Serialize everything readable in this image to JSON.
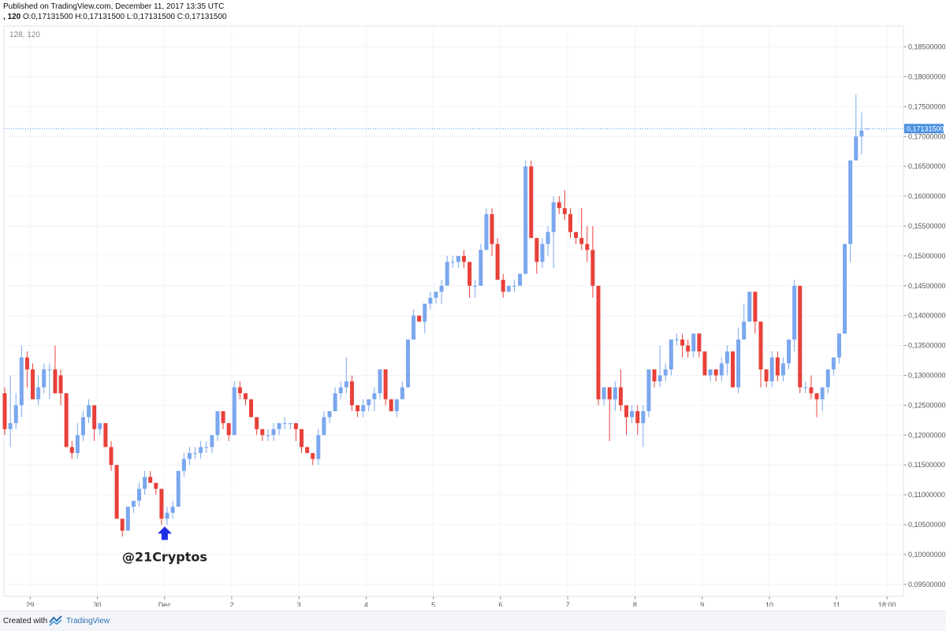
{
  "header": {
    "published": "Published on TradingView.com, December 11, 2017 13:35 UTC",
    "ohlc_prefix": ", 120",
    "ohlc_rest": "O:0,17131500 H:0,17131500 L:0,17131500 C:0,17131500"
  },
  "chart_data": {
    "type": "candlestick",
    "indicator_label": "128, 120",
    "annotation": "@21Cryptos",
    "last_price_label": "0,17131500",
    "last_price": 0.171315,
    "ylim": [
      0.093,
      0.1885
    ],
    "y_ticks": [
      0.185,
      0.18,
      0.175,
      0.17,
      0.165,
      0.16,
      0.155,
      0.15,
      0.145,
      0.14,
      0.135,
      0.13,
      0.125,
      0.12,
      0.115,
      0.11,
      0.105,
      0.1,
      0.095
    ],
    "y_tick_labels": [
      "0,18500000",
      "0,18000000",
      "0,17500000",
      "0,17000000",
      "0,16500000",
      "0,16000000",
      "0,15500000",
      "0,15000000",
      "0,14500000",
      "0,14000000",
      "0,13500000",
      "0,13000000",
      "0,12500000",
      "0,12000000",
      "0,11500000",
      "0,11000000",
      "0,10500000",
      "0,10000000",
      "0,09500000"
    ],
    "x_labels": [
      "29",
      "30",
      "Dec",
      "2",
      "3",
      "4",
      "5",
      "6",
      "7",
      "8",
      "9",
      "10",
      "11",
      "18:00"
    ],
    "x_label_bars": [
      2,
      14,
      26,
      38,
      50,
      62,
      74,
      86,
      98,
      110,
      122,
      134,
      146,
      155
    ],
    "up_color": "#7aa7ee",
    "down_color": "#e8403a",
    "candles": [
      [
        0.127,
        0.128,
        0.12,
        0.121
      ],
      [
        0.121,
        0.13,
        0.118,
        0.122
      ],
      [
        0.122,
        0.127,
        0.121,
        0.125
      ],
      [
        0.125,
        0.135,
        0.123,
        0.133
      ],
      [
        0.133,
        0.134,
        0.128,
        0.131
      ],
      [
        0.131,
        0.132,
        0.126,
        0.126
      ],
      [
        0.126,
        0.13,
        0.125,
        0.128
      ],
      [
        0.128,
        0.132,
        0.127,
        0.131
      ],
      [
        0.131,
        0.132,
        0.126,
        0.131
      ],
      [
        0.131,
        0.135,
        0.127,
        0.127
      ],
      [
        0.13,
        0.131,
        0.125,
        0.127
      ],
      [
        0.127,
        0.127,
        0.118,
        0.118
      ],
      [
        0.118,
        0.119,
        0.116,
        0.117
      ],
      [
        0.117,
        0.122,
        0.116,
        0.12
      ],
      [
        0.12,
        0.124,
        0.119,
        0.123
      ],
      [
        0.123,
        0.126,
        0.122,
        0.125
      ],
      [
        0.125,
        0.125,
        0.119,
        0.121
      ],
      [
        0.121,
        0.122,
        0.12,
        0.122
      ],
      [
        0.122,
        0.122,
        0.118,
        0.118
      ],
      [
        0.118,
        0.119,
        0.114,
        0.115
      ],
      [
        0.115,
        0.115,
        0.106,
        0.106
      ],
      [
        0.106,
        0.106,
        0.103,
        0.104
      ],
      [
        0.104,
        0.108,
        0.104,
        0.108
      ],
      [
        0.108,
        0.109,
        0.107,
        0.109
      ],
      [
        0.109,
        0.112,
        0.108,
        0.111
      ],
      [
        0.111,
        0.114,
        0.11,
        0.113
      ],
      [
        0.113,
        0.114,
        0.112,
        0.112
      ],
      [
        0.112,
        0.112,
        0.11,
        0.111
      ],
      [
        0.111,
        0.111,
        0.105,
        0.106
      ],
      [
        0.106,
        0.108,
        0.105,
        0.107
      ],
      [
        0.107,
        0.109,
        0.106,
        0.108
      ],
      [
        0.108,
        0.114,
        0.108,
        0.114
      ],
      [
        0.114,
        0.117,
        0.113,
        0.116
      ],
      [
        0.116,
        0.118,
        0.115,
        0.117
      ],
      [
        0.117,
        0.118,
        0.116,
        0.117
      ],
      [
        0.117,
        0.119,
        0.116,
        0.118
      ],
      [
        0.118,
        0.119,
        0.117,
        0.118
      ],
      [
        0.118,
        0.12,
        0.117,
        0.12
      ],
      [
        0.12,
        0.124,
        0.119,
        0.124
      ],
      [
        0.124,
        0.124,
        0.121,
        0.122
      ],
      [
        0.122,
        0.122,
        0.119,
        0.12
      ],
      [
        0.12,
        0.129,
        0.12,
        0.128
      ],
      [
        0.128,
        0.129,
        0.126,
        0.127
      ],
      [
        0.127,
        0.127,
        0.125,
        0.126
      ],
      [
        0.126,
        0.126,
        0.123,
        0.123
      ],
      [
        0.123,
        0.123,
        0.12,
        0.121
      ],
      [
        0.121,
        0.121,
        0.119,
        0.12
      ],
      [
        0.12,
        0.121,
        0.119,
        0.12
      ],
      [
        0.12,
        0.122,
        0.119,
        0.121
      ],
      [
        0.121,
        0.122,
        0.12,
        0.122
      ],
      [
        0.122,
        0.123,
        0.121,
        0.122
      ],
      [
        0.122,
        0.122,
        0.121,
        0.122
      ],
      [
        0.122,
        0.122,
        0.119,
        0.121
      ],
      [
        0.121,
        0.121,
        0.117,
        0.118
      ],
      [
        0.118,
        0.118,
        0.117,
        0.117
      ],
      [
        0.117,
        0.117,
        0.115,
        0.116
      ],
      [
        0.116,
        0.121,
        0.115,
        0.12
      ],
      [
        0.12,
        0.124,
        0.12,
        0.123
      ],
      [
        0.123,
        0.124,
        0.122,
        0.124
      ],
      [
        0.124,
        0.128,
        0.124,
        0.127
      ],
      [
        0.127,
        0.129,
        0.126,
        0.128
      ],
      [
        0.128,
        0.133,
        0.127,
        0.129
      ],
      [
        0.129,
        0.13,
        0.124,
        0.125
      ],
      [
        0.125,
        0.125,
        0.123,
        0.124
      ],
      [
        0.124,
        0.126,
        0.123,
        0.125
      ],
      [
        0.125,
        0.126,
        0.124,
        0.126
      ],
      [
        0.126,
        0.128,
        0.124,
        0.127
      ],
      [
        0.127,
        0.131,
        0.126,
        0.131
      ],
      [
        0.131,
        0.131,
        0.125,
        0.126
      ],
      [
        0.126,
        0.126,
        0.124,
        0.124
      ],
      [
        0.124,
        0.126,
        0.123,
        0.126
      ],
      [
        0.126,
        0.129,
        0.126,
        0.128
      ],
      [
        0.128,
        0.136,
        0.128,
        0.136
      ],
      [
        0.136,
        0.141,
        0.136,
        0.14
      ],
      [
        0.14,
        0.14,
        0.139,
        0.139
      ],
      [
        0.139,
        0.142,
        0.137,
        0.142
      ],
      [
        0.142,
        0.144,
        0.141,
        0.143
      ],
      [
        0.143,
        0.144,
        0.142,
        0.144
      ],
      [
        0.144,
        0.146,
        0.142,
        0.145
      ],
      [
        0.145,
        0.15,
        0.145,
        0.149
      ],
      [
        0.149,
        0.15,
        0.148,
        0.149
      ],
      [
        0.149,
        0.15,
        0.148,
        0.15
      ],
      [
        0.15,
        0.151,
        0.148,
        0.149
      ],
      [
        0.149,
        0.149,
        0.143,
        0.145
      ],
      [
        0.145,
        0.146,
        0.143,
        0.145
      ],
      [
        0.145,
        0.152,
        0.145,
        0.151
      ],
      [
        0.151,
        0.158,
        0.151,
        0.157
      ],
      [
        0.157,
        0.158,
        0.15,
        0.152
      ],
      [
        0.152,
        0.153,
        0.146,
        0.146
      ],
      [
        0.146,
        0.147,
        0.143,
        0.144
      ],
      [
        0.144,
        0.145,
        0.144,
        0.145
      ],
      [
        0.145,
        0.146,
        0.144,
        0.145
      ],
      [
        0.145,
        0.147,
        0.145,
        0.147
      ],
      [
        0.147,
        0.166,
        0.147,
        0.165
      ],
      [
        0.165,
        0.166,
        0.153,
        0.153
      ],
      [
        0.153,
        0.153,
        0.147,
        0.149
      ],
      [
        0.149,
        0.153,
        0.148,
        0.152
      ],
      [
        0.152,
        0.155,
        0.15,
        0.154
      ],
      [
        0.154,
        0.16,
        0.148,
        0.159
      ],
      [
        0.159,
        0.16,
        0.157,
        0.158
      ],
      [
        0.158,
        0.161,
        0.156,
        0.157
      ],
      [
        0.157,
        0.158,
        0.153,
        0.154
      ],
      [
        0.154,
        0.154,
        0.152,
        0.153
      ],
      [
        0.153,
        0.158,
        0.151,
        0.152
      ],
      [
        0.152,
        0.155,
        0.149,
        0.151
      ],
      [
        0.151,
        0.155,
        0.143,
        0.145
      ],
      [
        0.145,
        0.145,
        0.125,
        0.126
      ],
      [
        0.126,
        0.128,
        0.125,
        0.128
      ],
      [
        0.128,
        0.128,
        0.119,
        0.126
      ],
      [
        0.126,
        0.129,
        0.124,
        0.128
      ],
      [
        0.128,
        0.131,
        0.124,
        0.125
      ],
      [
        0.125,
        0.125,
        0.12,
        0.123
      ],
      [
        0.123,
        0.125,
        0.122,
        0.124
      ],
      [
        0.124,
        0.125,
        0.12,
        0.122
      ],
      [
        0.122,
        0.125,
        0.118,
        0.124
      ],
      [
        0.124,
        0.131,
        0.123,
        0.131
      ],
      [
        0.131,
        0.131,
        0.128,
        0.129
      ],
      [
        0.129,
        0.135,
        0.128,
        0.13
      ],
      [
        0.13,
        0.132,
        0.129,
        0.131
      ],
      [
        0.131,
        0.136,
        0.13,
        0.136
      ],
      [
        0.136,
        0.137,
        0.135,
        0.136
      ],
      [
        0.136,
        0.137,
        0.133,
        0.135
      ],
      [
        0.135,
        0.136,
        0.133,
        0.134
      ],
      [
        0.134,
        0.137,
        0.133,
        0.137
      ],
      [
        0.137,
        0.137,
        0.133,
        0.134
      ],
      [
        0.134,
        0.134,
        0.13,
        0.13
      ],
      [
        0.13,
        0.131,
        0.129,
        0.131
      ],
      [
        0.131,
        0.131,
        0.129,
        0.13
      ],
      [
        0.13,
        0.133,
        0.129,
        0.132
      ],
      [
        0.132,
        0.135,
        0.13,
        0.134
      ],
      [
        0.134,
        0.134,
        0.128,
        0.128
      ],
      [
        0.128,
        0.138,
        0.127,
        0.136
      ],
      [
        0.136,
        0.142,
        0.136,
        0.139
      ],
      [
        0.139,
        0.144,
        0.139,
        0.144
      ],
      [
        0.144,
        0.144,
        0.137,
        0.139
      ],
      [
        0.139,
        0.139,
        0.128,
        0.131
      ],
      [
        0.131,
        0.131,
        0.128,
        0.129
      ],
      [
        0.129,
        0.134,
        0.128,
        0.133
      ],
      [
        0.133,
        0.134,
        0.129,
        0.13
      ],
      [
        0.13,
        0.133,
        0.129,
        0.132
      ],
      [
        0.132,
        0.136,
        0.131,
        0.136
      ],
      [
        0.136,
        0.146,
        0.134,
        0.145
      ],
      [
        0.145,
        0.145,
        0.127,
        0.128
      ],
      [
        0.128,
        0.129,
        0.127,
        0.128
      ],
      [
        0.128,
        0.13,
        0.126,
        0.127
      ],
      [
        0.127,
        0.127,
        0.123,
        0.126
      ],
      [
        0.126,
        0.128,
        0.124,
        0.128
      ],
      [
        0.128,
        0.131,
        0.127,
        0.131
      ],
      [
        0.131,
        0.133,
        0.13,
        0.133
      ],
      [
        0.133,
        0.137,
        0.132,
        0.137
      ],
      [
        0.137,
        0.152,
        0.137,
        0.152
      ],
      [
        0.152,
        0.166,
        0.149,
        0.166
      ],
      [
        0.166,
        0.177,
        0.166,
        0.17
      ],
      [
        0.17,
        0.174,
        0.167,
        0.171
      ],
      [
        0.1713,
        0.1713,
        0.1713,
        0.1713
      ]
    ]
  },
  "footer": {
    "created_with": "Created with",
    "brand": "TradingView"
  }
}
